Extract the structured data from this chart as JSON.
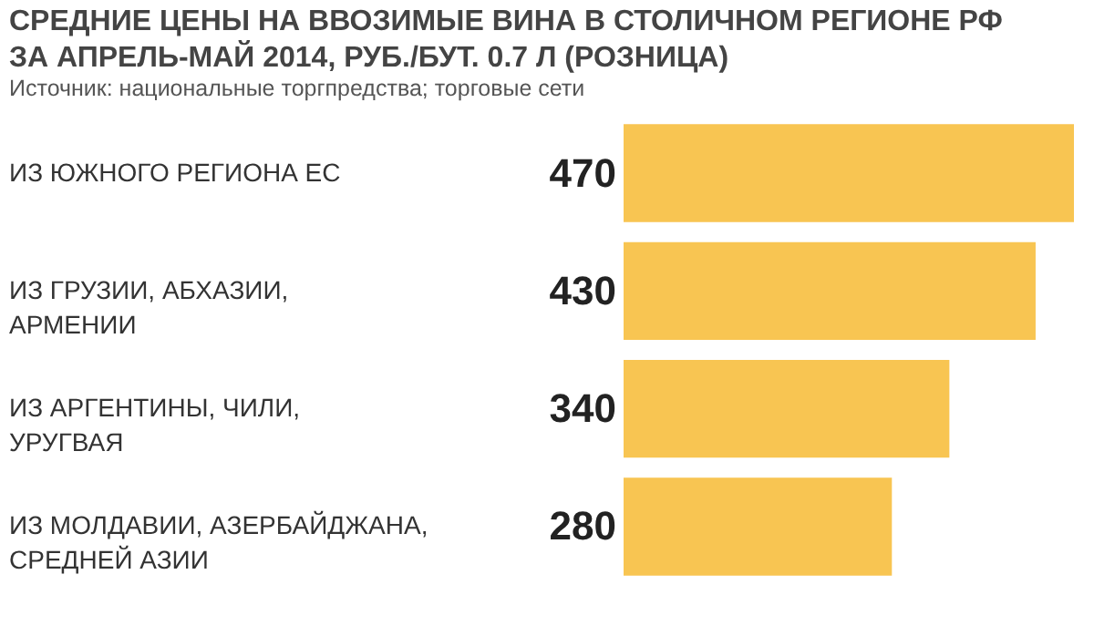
{
  "chart_data": {
    "type": "bar",
    "orientation": "horizontal",
    "title": "СРЕДНИЕ ЦЕНЫ НА ВВОЗИМЫЕ ВИНА В СТОЛИЧНОМ РЕГИОНЕ РФ ЗА АПРЕЛЬ-МАЙ 2014, РУБ./БУТ. 0.7 Л (РОЗНИЦА)",
    "subtitle": "Источник: национальные торгпредства; торговые сети",
    "categories": [
      "ИЗ ЮЖНОГО РЕГИОНА ЕС",
      "ИЗ ГРУЗИИ, АБХАЗИИ, АРМЕНИИ",
      "ИЗ АРГЕНТИНЫ, ЧИЛИ, УРУГВАЯ",
      "ИЗ МОЛДАВИИ, АЗЕРБАЙДЖАНА, СРЕДНЕЙ АЗИИ"
    ],
    "values": [
      470,
      430,
      340,
      280
    ],
    "color": "#f8c552",
    "data_labels": true
  }
}
